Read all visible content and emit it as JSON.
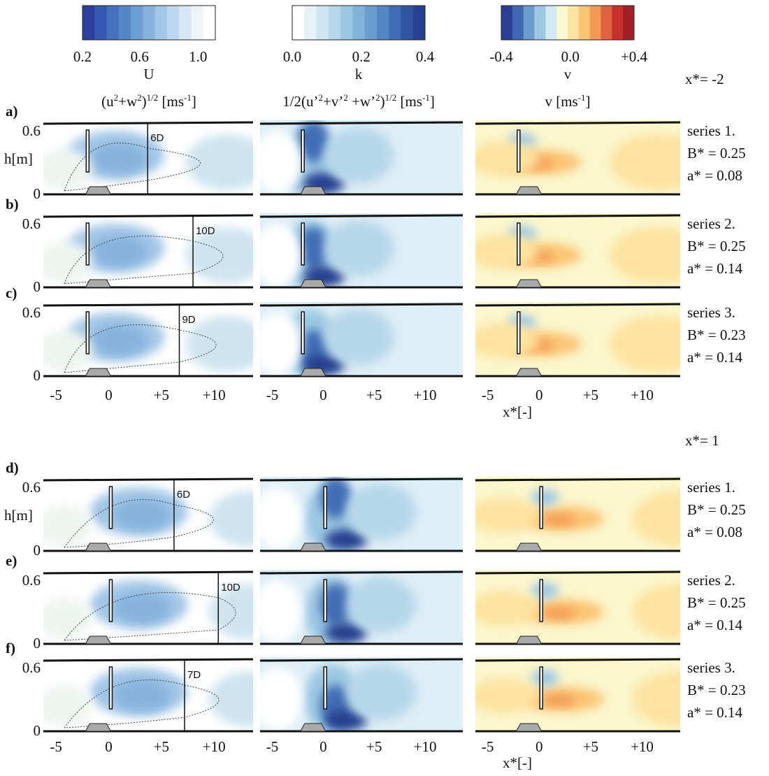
{
  "colorbars": [
    {
      "ticks": [
        "0.2",
        "0.6",
        "1.0"
      ],
      "label": "U",
      "unit": [
        "(u",
        "2",
        "+w",
        "2",
        ")",
        "1/2",
        " [ms",
        "-1",
        "]"
      ],
      "colors": [
        "#2b3f9e",
        "#3558b0",
        "#4470bd",
        "#5587c8",
        "#6c9dd3",
        "#86b2dd",
        "#a2c6e6",
        "#bdd8ee",
        "#d6e8f4",
        "#eef5f8",
        "#ffffff"
      ]
    },
    {
      "ticks": [
        "0.0",
        "0.2",
        "0.4"
      ],
      "label": "k",
      "unit": [
        "1/2(u’",
        "2",
        "+v’",
        "2",
        " +w’",
        "2",
        ")",
        "1/2",
        " [ms",
        "-1",
        "]"
      ],
      "colors": [
        "#ffffff",
        "#e6f2f8",
        "#cfe5f1",
        "#b6d7ea",
        "#9cc7e2",
        "#82b4d9",
        "#6a9ece",
        "#5386c3",
        "#3f6db5",
        "#2f54a3",
        "#27408f"
      ]
    },
    {
      "ticks": [
        "-0.4",
        "0.0",
        "+0.4"
      ],
      "label": "v",
      "unit": [
        "v [ms",
        "-1",
        "]"
      ],
      "colors": [
        "#2b3d98",
        "#3f68b0",
        "#6a9ccc",
        "#9ec8e2",
        "#d3e9f1",
        "#fbf8cf",
        "#fde3a0",
        "#fbc474",
        "#f29a53",
        "#e0623c",
        "#c8302c",
        "#a51e26"
      ]
    }
  ],
  "stations": [
    "x*= -2",
    "x*= 1"
  ],
  "panels": [
    {
      "letter": "a)",
      "distance": "6D",
      "series": [
        "series 1.",
        "B* = 0.25",
        "a* = 0.08"
      ]
    },
    {
      "letter": "b)",
      "distance": "10D",
      "series": [
        "series 2.",
        "B* = 0.25",
        "a* = 0.14"
      ]
    },
    {
      "letter": "c)",
      "distance": "9D",
      "series": [
        "series 3.",
        "B* = 0.23",
        "a* = 0.14"
      ]
    },
    {
      "letter": "d)",
      "distance": "6D",
      "series": [
        "series 1.",
        "B* = 0.25",
        "a* = 0.08"
      ]
    },
    {
      "letter": "e)",
      "distance": "10D",
      "series": [
        "series 2.",
        "B* = 0.25",
        "a* = 0.14"
      ]
    },
    {
      "letter": "f)",
      "distance": "7D",
      "series": [
        "series 3.",
        "B* = 0.23",
        "a* = 0.14"
      ]
    }
  ],
  "y_axis": {
    "label": "h[m]",
    "ticks": [
      "0.6",
      "0"
    ]
  },
  "x_axis": {
    "label": "x*[-]",
    "ticks": [
      "-5",
      "0",
      "+5",
      "+10"
    ]
  }
}
